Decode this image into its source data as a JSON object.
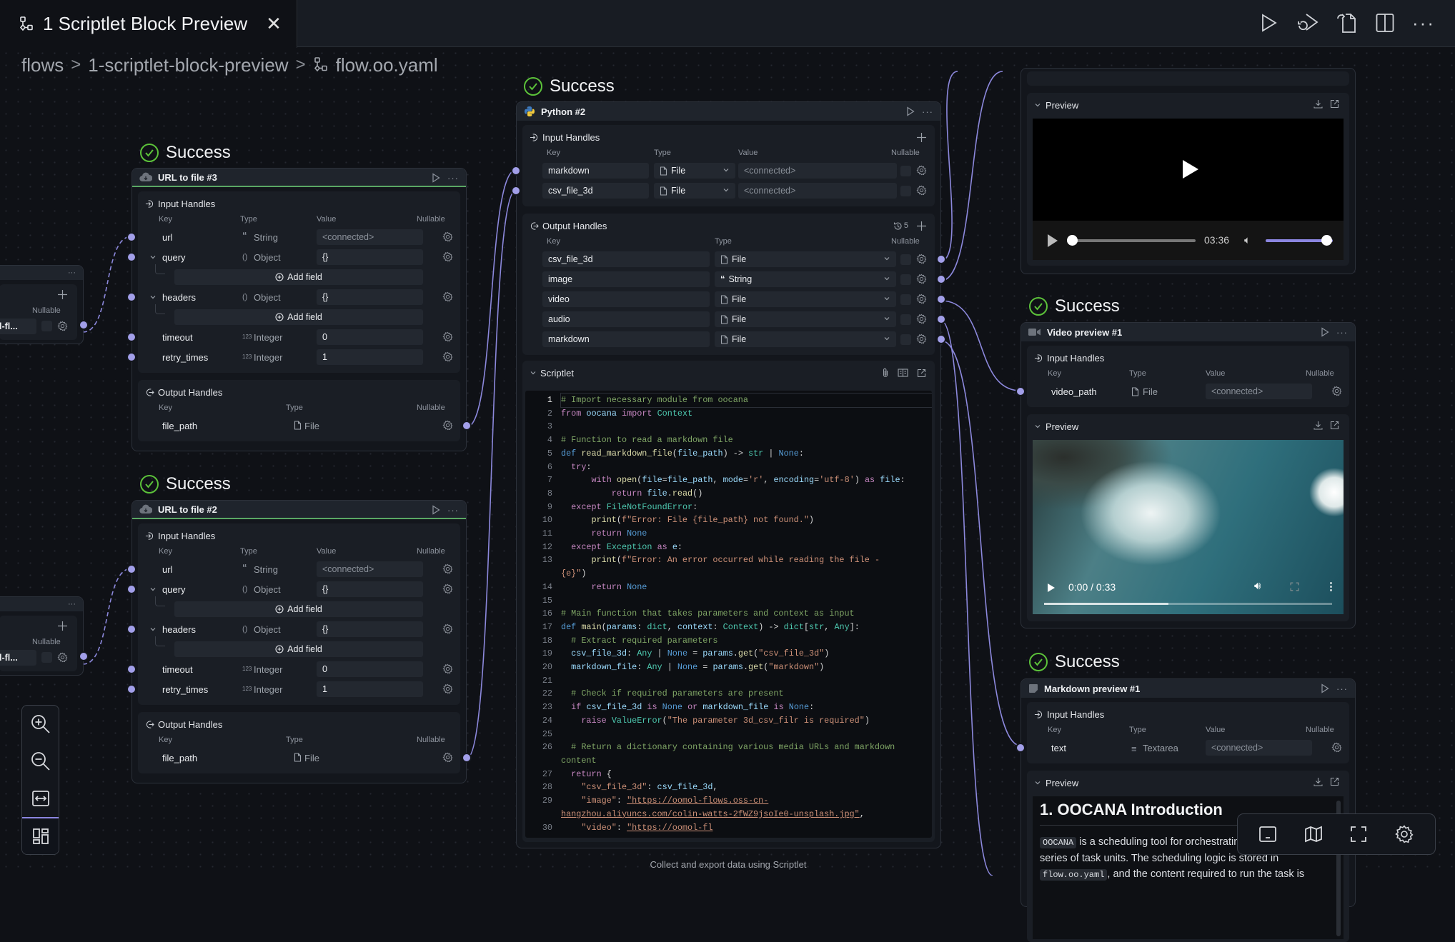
{
  "tab": {
    "title": "1 Scriptlet Block Preview",
    "icon": "flow-icon"
  },
  "toolbar": {
    "icons": [
      "run-icon",
      "run-from-icon",
      "export-icon",
      "split-view-icon",
      "more-icon"
    ]
  },
  "breadcrumb": {
    "items": [
      "flows",
      "1-scriptlet-block-preview",
      "flow.oo.yaml"
    ]
  },
  "common": {
    "input_title": "Input Handles",
    "output_title": "Output Handles",
    "key": "Key",
    "type": "Type",
    "value": "Value",
    "nullable": "Nullable",
    "status": "Success",
    "preview": "Preview",
    "scriptlet": "Scriptlet"
  },
  "partial_nodes": [
    {
      "value": "l-fl..."
    },
    {
      "value": "l-fl..."
    }
  ],
  "url_nodes": [
    {
      "title": "URL to file  #3",
      "inputs": [
        {
          "key": "url",
          "type": "String",
          "type_icon": "quote-icon",
          "value": "<connected>",
          "placeholder": true
        },
        {
          "key": "query",
          "type": "Object",
          "type_icon": "braces-icon",
          "value": "{}",
          "add_field": "Add field"
        },
        {
          "key": "headers",
          "type": "Object",
          "type_icon": "braces-icon",
          "value": "{}",
          "add_field": "Add field"
        },
        {
          "key": "timeout",
          "type": "Integer",
          "type_icon": "number-icon",
          "value": "0"
        },
        {
          "key": "retry_times",
          "type": "Integer",
          "type_icon": "number-icon",
          "value": "1"
        }
      ],
      "outputs": [
        {
          "key": "file_path",
          "type": "File",
          "type_icon": "file-icon"
        }
      ]
    },
    {
      "title": "URL to file  #2",
      "inputs": [
        {
          "key": "url",
          "type": "String",
          "type_icon": "quote-icon",
          "value": "<connected>",
          "placeholder": true
        },
        {
          "key": "query",
          "type": "Object",
          "type_icon": "braces-icon",
          "value": "{}",
          "add_field": "Add field"
        },
        {
          "key": "headers",
          "type": "Object",
          "type_icon": "braces-icon",
          "value": "{}",
          "add_field": "Add field"
        },
        {
          "key": "timeout",
          "type": "Integer",
          "type_icon": "number-icon",
          "value": "0"
        },
        {
          "key": "retry_times",
          "type": "Integer",
          "type_icon": "number-icon",
          "value": "1"
        }
      ],
      "outputs": [
        {
          "key": "file_path",
          "type": "File",
          "type_icon": "file-icon"
        }
      ]
    }
  ],
  "python_node": {
    "title": "Python #2",
    "inputs": [
      {
        "key": "markdown",
        "type": "File",
        "value": "<connected>"
      },
      {
        "key": "csv_file_3d",
        "type": "File",
        "value": "<connected>"
      }
    ],
    "history_count": "5",
    "outputs": [
      {
        "key": "csv_file_3d",
        "type": "File",
        "type_icon": "file-icon"
      },
      {
        "key": "image",
        "type": "String",
        "type_icon": "quote-icon"
      },
      {
        "key": "video",
        "type": "File",
        "type_icon": "file-icon"
      },
      {
        "key": "audio",
        "type": "File",
        "type_icon": "file-icon"
      },
      {
        "key": "markdown",
        "type": "File",
        "type_icon": "file-icon"
      }
    ],
    "code": [
      "# Import necessary module from oocana",
      "from oocana import Context",
      "",
      "# Function to read a markdown file",
      "def read_markdown_file(file_path) -> str | None:",
      "  try:",
      "      with open(file=file_path, mode='r', encoding='utf-8') as file:",
      "          return file.read()",
      "  except FileNotFoundError:",
      "      print(f\"Error: File {file_path} not found.\")",
      "      return None",
      "  except Exception as e:",
      "      print(f\"Error: An error occurred while reading the file - {e}\")",
      "      return None",
      "",
      "# Main function that takes parameters and context as input",
      "def main(params: dict, context: Context) -> dict[str, Any]:",
      "  # Extract required parameters",
      "  csv_file_3d: Any | None = params.get(\"csv_file_3d\")",
      "  markdown_file: Any | None = params.get(\"markdown\")",
      "",
      "  # Check if required parameters are present",
      "  if csv_file_3d is None or markdown_file is None:",
      "    raise ValueError(\"The parameter 3d_csv_filr is required\")",
      "",
      "  # Return a dictionary containing various media URLs and markdown content",
      "  return {",
      "    \"csv_file_3d\": csv_file_3d,",
      "    \"image\": \"https://oomol-flows.oss-cn-hangzhou.aliyuncs.com/colin-watts-2fWZ9jsoIe0-unsplash.jpg\",",
      "    \"video\": \"https://oomol-fl"
    ]
  },
  "audio_node": {
    "duration": "03:36",
    "volume": 0.9,
    "progress": 0
  },
  "video_node": {
    "title": "Video preview #1",
    "inputs": [
      {
        "key": "video_path",
        "type": "File",
        "type_icon": "file-icon",
        "value": "<connected>",
        "placeholder": true
      }
    ],
    "time": "0:00 / 0:33",
    "progress": 0
  },
  "markdown_node": {
    "title": "Markdown preview #1",
    "inputs": [
      {
        "key": "text",
        "type": "Textarea",
        "type_icon": "textarea-icon",
        "value": "<connected>",
        "placeholder": true
      }
    ],
    "heading": "1. OOCANA Introduction",
    "code1": "OOCANA",
    "text1": " is a scheduling tool for orchestrating and",
    "text2": "series of task units. The scheduling logic is stored in",
    "code2": "flow.oo.yaml",
    "text3": ", and the content required to run the task is"
  },
  "zoom_toolbar": {
    "icons": [
      "zoom-in-icon",
      "zoom-out-icon",
      "fit-view-icon",
      "layout-icon"
    ],
    "active": "layout-icon"
  },
  "bottom_toolbar": {
    "icons": [
      "panel-icon",
      "map-icon",
      "fullscreen-icon",
      "settings-icon"
    ]
  },
  "caption": "Collect and export data using Scriptlet",
  "colors": {
    "accent": "#a29fe9",
    "success": "#5cc23a",
    "canvas": "#0f1116"
  }
}
